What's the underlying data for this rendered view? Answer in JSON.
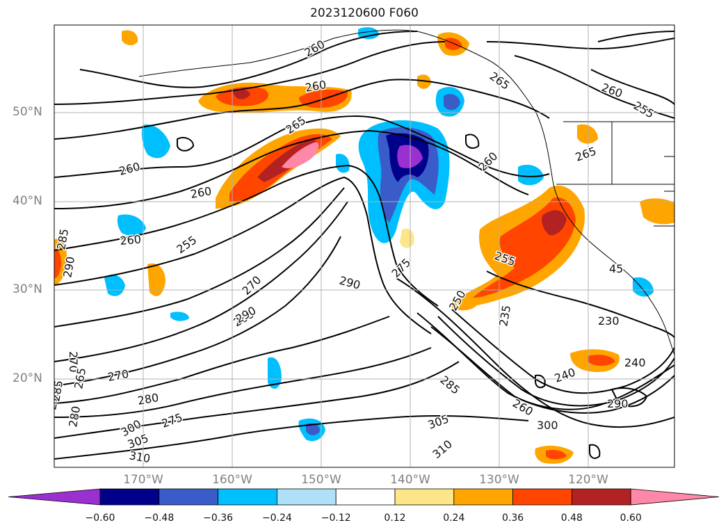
{
  "title": "2023120600 F060",
  "lat_labels": [
    "50°N",
    "40°N",
    "30°N",
    "20°N"
  ],
  "lon_labels": [
    "170°W",
    "160°W",
    "150°W",
    "140°W",
    "130°W",
    "120°W"
  ],
  "contour_labels": [
    "260",
    "260",
    "260",
    "265",
    "260",
    "260",
    "255",
    "270",
    "280",
    "290",
    "290",
    "275",
    "270",
    "270",
    "265",
    "275",
    "280",
    "280",
    "275",
    "300",
    "305",
    "310",
    "285",
    "255",
    "250",
    "235",
    "230",
    "240",
    "240",
    "260",
    "300",
    "305",
    "310",
    "290",
    "265",
    "260",
    "255",
    "265",
    "260",
    "285",
    "285",
    "290",
    "45"
  ],
  "colorbar": {
    "ticks": [
      "−0.60",
      "−0.48",
      "−0.36",
      "−0.24",
      "−0.12",
      "0.12",
      "0.24",
      "0.36",
      "0.48",
      "0.60"
    ],
    "colors": [
      "#9b30d0",
      "#00008b",
      "#3a5cc8",
      "#00bfff",
      "#aee0f8",
      "#ffffff",
      "#fde68a",
      "#ffa500",
      "#ff4500",
      "#b22222",
      "#ff88a8"
    ]
  }
}
